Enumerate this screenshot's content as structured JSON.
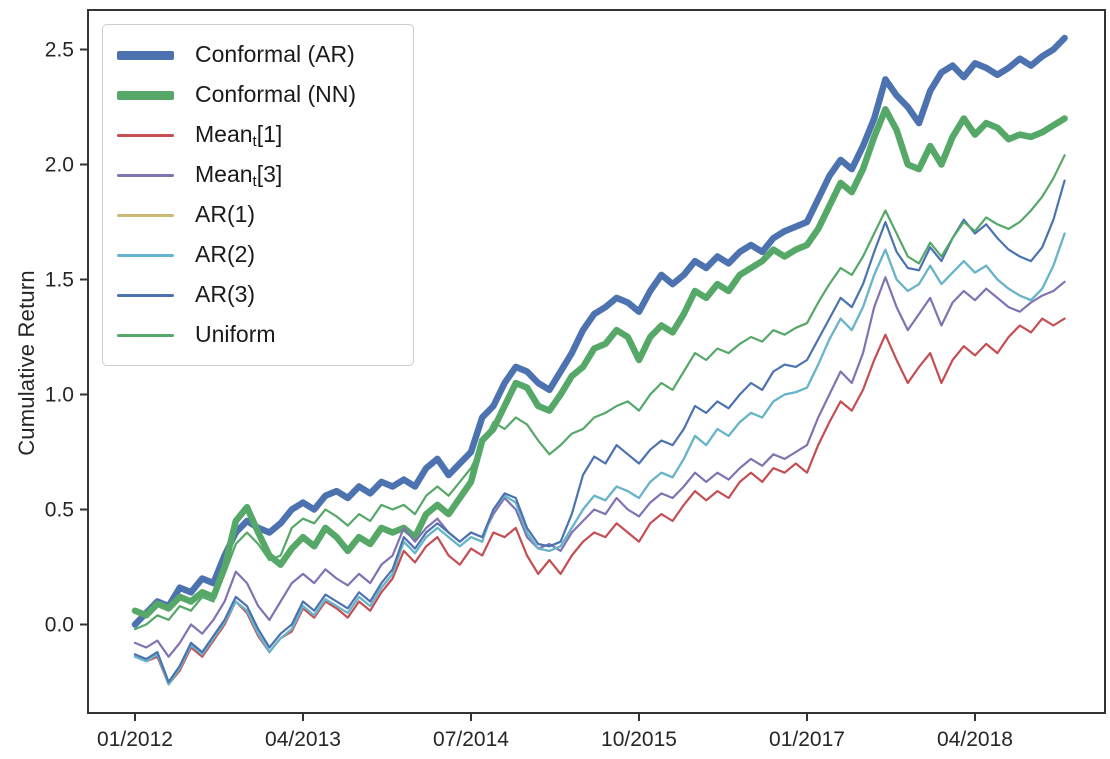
{
  "chart_data": {
    "type": "line",
    "title": "",
    "xlabel": "",
    "ylabel": "Cumulative Return",
    "grid": false,
    "legend_position": "upper left",
    "x_axis": {
      "unit": "month index from 2012-01",
      "tick_indices": [
        0,
        15,
        30,
        45,
        60,
        75
      ],
      "tick_labels": [
        "01/2012",
        "04/2013",
        "07/2014",
        "10/2015",
        "01/2017",
        "04/2018"
      ],
      "range": [
        -4.2,
        86.6
      ]
    },
    "y_axis": {
      "label": "Cumulative Return",
      "ticks": [
        0.0,
        0.5,
        1.0,
        1.5,
        2.0,
        2.5
      ],
      "range": [
        -0.39,
        2.67
      ]
    },
    "axis_color": "#333333",
    "series": [
      {
        "name": "Conformal (AR)",
        "color": "#4C72B0",
        "thick": true,
        "legend_label": {
          "pre": "Conformal (AR)",
          "sub": "",
          "post": ""
        },
        "values": [
          0.0,
          0.05,
          0.1,
          0.08,
          0.16,
          0.14,
          0.2,
          0.18,
          0.3,
          0.4,
          0.45,
          0.42,
          0.4,
          0.44,
          0.5,
          0.53,
          0.5,
          0.56,
          0.58,
          0.55,
          0.6,
          0.57,
          0.62,
          0.6,
          0.63,
          0.6,
          0.68,
          0.72,
          0.65,
          0.7,
          0.75,
          0.9,
          0.95,
          1.05,
          1.12,
          1.1,
          1.05,
          1.02,
          1.1,
          1.18,
          1.28,
          1.35,
          1.38,
          1.42,
          1.4,
          1.36,
          1.45,
          1.52,
          1.48,
          1.52,
          1.58,
          1.55,
          1.6,
          1.57,
          1.62,
          1.65,
          1.62,
          1.68,
          1.71,
          1.73,
          1.75,
          1.85,
          1.95,
          2.02,
          1.98,
          2.08,
          2.2,
          2.37,
          2.3,
          2.25,
          2.18,
          2.32,
          2.4,
          2.43,
          2.38,
          2.44,
          2.42,
          2.39,
          2.42,
          2.46,
          2.43,
          2.47,
          2.5,
          2.55
        ]
      },
      {
        "name": "Conformal (NN)",
        "color": "#55A868",
        "thick": true,
        "legend_label": {
          "pre": "Conformal (NN)",
          "sub": "",
          "post": ""
        },
        "values": [
          0.06,
          0.04,
          0.09,
          0.07,
          0.12,
          0.1,
          0.14,
          0.12,
          0.25,
          0.45,
          0.51,
          0.4,
          0.3,
          0.26,
          0.33,
          0.38,
          0.34,
          0.42,
          0.38,
          0.32,
          0.38,
          0.35,
          0.42,
          0.4,
          0.42,
          0.38,
          0.48,
          0.52,
          0.48,
          0.55,
          0.62,
          0.8,
          0.85,
          0.95,
          1.05,
          1.03,
          0.95,
          0.93,
          1.0,
          1.08,
          1.12,
          1.2,
          1.22,
          1.28,
          1.25,
          1.15,
          1.25,
          1.3,
          1.27,
          1.35,
          1.45,
          1.42,
          1.48,
          1.45,
          1.52,
          1.55,
          1.58,
          1.63,
          1.6,
          1.63,
          1.65,
          1.72,
          1.82,
          1.92,
          1.88,
          1.98,
          2.12,
          2.24,
          2.15,
          2.0,
          1.98,
          2.08,
          2.0,
          2.12,
          2.2,
          2.13,
          2.18,
          2.16,
          2.11,
          2.13,
          2.12,
          2.14,
          2.17,
          2.2
        ]
      },
      {
        "name": "Mean_t[1]",
        "color": "#C44E52",
        "thick": false,
        "legend_label": {
          "pre": "Mean",
          "sub": "t",
          "post": "[1]"
        },
        "values": [
          -0.13,
          -0.16,
          -0.14,
          -0.26,
          -0.2,
          -0.1,
          -0.14,
          -0.07,
          0.0,
          0.1,
          0.05,
          -0.05,
          -0.12,
          -0.06,
          -0.03,
          0.07,
          0.03,
          0.1,
          0.07,
          0.03,
          0.1,
          0.06,
          0.14,
          0.2,
          0.32,
          0.27,
          0.34,
          0.38,
          0.3,
          0.26,
          0.33,
          0.3,
          0.4,
          0.38,
          0.42,
          0.3,
          0.22,
          0.28,
          0.22,
          0.3,
          0.36,
          0.4,
          0.38,
          0.44,
          0.4,
          0.36,
          0.44,
          0.48,
          0.45,
          0.52,
          0.58,
          0.54,
          0.58,
          0.55,
          0.62,
          0.66,
          0.62,
          0.68,
          0.66,
          0.7,
          0.66,
          0.78,
          0.88,
          0.97,
          0.93,
          1.02,
          1.15,
          1.26,
          1.15,
          1.05,
          1.12,
          1.18,
          1.05,
          1.15,
          1.21,
          1.17,
          1.22,
          1.18,
          1.25,
          1.3,
          1.27,
          1.33,
          1.3,
          1.33
        ]
      },
      {
        "name": "Mean_t[3]",
        "color": "#8172B2",
        "thick": false,
        "legend_label": {
          "pre": "Mean",
          "sub": "t",
          "post": "[3]"
        },
        "values": [
          -0.08,
          -0.1,
          -0.07,
          -0.14,
          -0.08,
          0.0,
          -0.04,
          0.02,
          0.1,
          0.23,
          0.18,
          0.08,
          0.02,
          0.1,
          0.18,
          0.22,
          0.18,
          0.24,
          0.2,
          0.17,
          0.22,
          0.18,
          0.26,
          0.3,
          0.42,
          0.36,
          0.42,
          0.46,
          0.4,
          0.36,
          0.4,
          0.38,
          0.48,
          0.55,
          0.5,
          0.38,
          0.33,
          0.35,
          0.32,
          0.4,
          0.45,
          0.5,
          0.48,
          0.55,
          0.5,
          0.47,
          0.53,
          0.57,
          0.55,
          0.6,
          0.66,
          0.62,
          0.66,
          0.63,
          0.68,
          0.72,
          0.69,
          0.74,
          0.72,
          0.75,
          0.78,
          0.9,
          1.0,
          1.1,
          1.05,
          1.18,
          1.38,
          1.51,
          1.38,
          1.28,
          1.35,
          1.42,
          1.3,
          1.4,
          1.45,
          1.41,
          1.46,
          1.42,
          1.38,
          1.36,
          1.4,
          1.43,
          1.45,
          1.49
        ]
      },
      {
        "name": "AR(1)",
        "color": "#CCB974",
        "thick": false,
        "legend_label": {
          "pre": "AR(1)",
          "sub": "",
          "post": ""
        },
        "values": [
          -0.14,
          -0.16,
          -0.13,
          -0.26,
          -0.19,
          -0.09,
          -0.13,
          -0.06,
          0.01,
          0.1,
          0.06,
          -0.04,
          -0.12,
          -0.06,
          -0.02,
          0.08,
          0.04,
          0.11,
          0.08,
          0.05,
          0.12,
          0.08,
          0.16,
          0.22,
          0.36,
          0.31,
          0.38,
          0.42,
          0.38,
          0.34,
          0.38,
          0.36,
          0.5,
          0.56,
          0.53,
          0.4,
          0.33,
          0.32,
          0.34,
          0.42,
          0.5,
          0.56,
          0.54,
          0.6,
          0.58,
          0.55,
          0.62,
          0.66,
          0.64,
          0.72,
          0.82,
          0.78,
          0.85,
          0.82,
          0.88,
          0.92,
          0.9,
          0.97,
          1.0,
          1.01,
          1.03,
          1.13,
          1.24,
          1.33,
          1.28,
          1.38,
          1.52,
          1.63,
          1.5,
          1.45,
          1.48,
          1.56,
          1.48,
          1.53,
          1.58,
          1.53,
          1.56,
          1.5,
          1.46,
          1.43,
          1.41,
          1.46,
          1.56,
          1.7
        ]
      },
      {
        "name": "AR(2)",
        "color": "#64B5CD",
        "thick": false,
        "legend_label": {
          "pre": "AR(2)",
          "sub": "",
          "post": ""
        },
        "values": [
          -0.14,
          -0.16,
          -0.13,
          -0.26,
          -0.19,
          -0.09,
          -0.13,
          -0.06,
          0.01,
          0.1,
          0.06,
          -0.04,
          -0.12,
          -0.06,
          -0.02,
          0.08,
          0.04,
          0.11,
          0.08,
          0.05,
          0.12,
          0.08,
          0.16,
          0.22,
          0.36,
          0.31,
          0.38,
          0.42,
          0.38,
          0.34,
          0.38,
          0.36,
          0.5,
          0.56,
          0.53,
          0.4,
          0.33,
          0.32,
          0.34,
          0.42,
          0.5,
          0.56,
          0.54,
          0.6,
          0.58,
          0.55,
          0.62,
          0.66,
          0.64,
          0.72,
          0.82,
          0.78,
          0.85,
          0.82,
          0.88,
          0.92,
          0.9,
          0.97,
          1.0,
          1.01,
          1.03,
          1.13,
          1.24,
          1.33,
          1.28,
          1.38,
          1.52,
          1.63,
          1.5,
          1.45,
          1.48,
          1.56,
          1.48,
          1.53,
          1.58,
          1.53,
          1.56,
          1.5,
          1.46,
          1.43,
          1.41,
          1.46,
          1.56,
          1.7
        ]
      },
      {
        "name": "AR(3)",
        "color": "#4C72B0",
        "thick": false,
        "legend_label": {
          "pre": "AR(3)",
          "sub": "",
          "post": ""
        },
        "values": [
          -0.13,
          -0.15,
          -0.12,
          -0.25,
          -0.18,
          -0.08,
          -0.12,
          -0.05,
          0.02,
          0.12,
          0.08,
          -0.02,
          -0.1,
          -0.04,
          0.0,
          0.1,
          0.06,
          0.13,
          0.1,
          0.07,
          0.14,
          0.1,
          0.18,
          0.24,
          0.38,
          0.33,
          0.4,
          0.44,
          0.4,
          0.36,
          0.4,
          0.38,
          0.5,
          0.57,
          0.55,
          0.42,
          0.35,
          0.34,
          0.36,
          0.48,
          0.65,
          0.73,
          0.7,
          0.78,
          0.74,
          0.7,
          0.76,
          0.8,
          0.78,
          0.85,
          0.95,
          0.92,
          0.97,
          0.94,
          1.0,
          1.05,
          1.02,
          1.1,
          1.13,
          1.12,
          1.15,
          1.24,
          1.33,
          1.42,
          1.38,
          1.48,
          1.62,
          1.75,
          1.62,
          1.55,
          1.54,
          1.64,
          1.58,
          1.68,
          1.76,
          1.7,
          1.74,
          1.68,
          1.63,
          1.6,
          1.58,
          1.64,
          1.76,
          1.93
        ]
      },
      {
        "name": "Uniform",
        "color": "#55A868",
        "thick": false,
        "legend_label": {
          "pre": "Uniform",
          "sub": "",
          "post": ""
        },
        "values": [
          -0.02,
          0.0,
          0.04,
          0.02,
          0.08,
          0.06,
          0.12,
          0.1,
          0.22,
          0.35,
          0.4,
          0.35,
          0.28,
          0.3,
          0.42,
          0.46,
          0.44,
          0.5,
          0.47,
          0.43,
          0.48,
          0.45,
          0.52,
          0.5,
          0.52,
          0.48,
          0.56,
          0.6,
          0.56,
          0.62,
          0.68,
          0.78,
          0.88,
          0.85,
          0.9,
          0.87,
          0.8,
          0.74,
          0.78,
          0.83,
          0.85,
          0.9,
          0.92,
          0.95,
          0.97,
          0.93,
          1.0,
          1.05,
          1.02,
          1.1,
          1.18,
          1.15,
          1.2,
          1.18,
          1.22,
          1.25,
          1.23,
          1.28,
          1.26,
          1.29,
          1.31,
          1.4,
          1.48,
          1.55,
          1.52,
          1.6,
          1.7,
          1.8,
          1.7,
          1.6,
          1.57,
          1.66,
          1.6,
          1.68,
          1.75,
          1.71,
          1.77,
          1.74,
          1.72,
          1.75,
          1.8,
          1.86,
          1.94,
          2.04
        ]
      }
    ]
  }
}
